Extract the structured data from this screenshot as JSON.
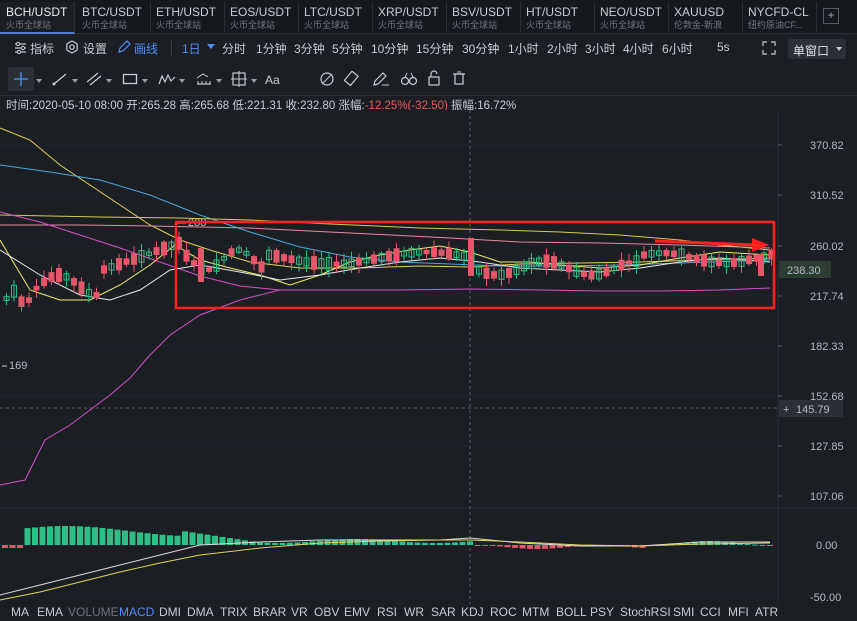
{
  "tabs": [
    {
      "symbol": "BCH/USDT",
      "sub": "火币全球站",
      "active": true
    },
    {
      "symbol": "BTC/USDT",
      "sub": "火币全球站"
    },
    {
      "symbol": "ETH/USDT",
      "sub": "火币全球站"
    },
    {
      "symbol": "EOS/USDT",
      "sub": "火币全球站"
    },
    {
      "symbol": "LTC/USDT",
      "sub": "火币全球站"
    },
    {
      "symbol": "XRP/USDT",
      "sub": "火币全球站"
    },
    {
      "symbol": "BSV/USDT",
      "sub": "火币全球站"
    },
    {
      "symbol": "HT/USDT",
      "sub": "火币全球站"
    },
    {
      "symbol": "NEO/USDT",
      "sub": "火币全球站"
    },
    {
      "symbol": "XAUUSD",
      "sub": "伦敦金-新浪"
    },
    {
      "symbol": "NYCFD-CL",
      "sub": "纽约原油CF..."
    }
  ],
  "toolbar": {
    "indicator_label": "指标",
    "settings_label": "设置",
    "draw_label": "画线",
    "intervals": [
      "1日",
      "分时",
      "1分钟",
      "3分钟",
      "5分钟",
      "10分钟",
      "15分钟",
      "30分钟",
      "1小时",
      "2小时",
      "3小时",
      "4小时",
      "6小时"
    ],
    "active_interval": "1日",
    "refresh": "5s",
    "window_mode": "单窗口"
  },
  "info": {
    "time": "时间:2020-05-10 08:00",
    "open": "开:265.28",
    "high": "高:265.68",
    "low": "低:221.31",
    "close": "收:232.80",
    "change_label": "涨幅:",
    "change_value": "-12.25%(-32.50)",
    "amplitude": "振幅:16.72%"
  },
  "chart_data": {
    "type": "candlestick",
    "price_axis_ticks": [
      "370.82",
      "310.52",
      "260.02",
      "217.74",
      "182.33",
      "152.68",
      "127.85",
      "107.06"
    ],
    "macd_axis_ticks": [
      "0.00",
      "-50.00"
    ],
    "current_price": "238.30",
    "crosshair_price": "145.79",
    "high_marker": "288",
    "low_marker": "169",
    "colors": {
      "up": "#2ebd85",
      "down": "#e5566a",
      "highlight": "#ff2a2a"
    }
  },
  "indicators": [
    "MA",
    "EMA",
    "VOLUME",
    "MACD",
    "DMI",
    "DMA",
    "TRIX",
    "BRAR",
    "VR",
    "OBV",
    "EMV",
    "RSI",
    "WR",
    "SAR",
    "KDJ",
    "ROC",
    "MTM",
    "BOLL",
    "PSY",
    "StochRSI",
    "SMI",
    "CCI",
    "MFI",
    "ATR"
  ],
  "active_indicator": "MACD",
  "dim_indicator": "VOLUME"
}
